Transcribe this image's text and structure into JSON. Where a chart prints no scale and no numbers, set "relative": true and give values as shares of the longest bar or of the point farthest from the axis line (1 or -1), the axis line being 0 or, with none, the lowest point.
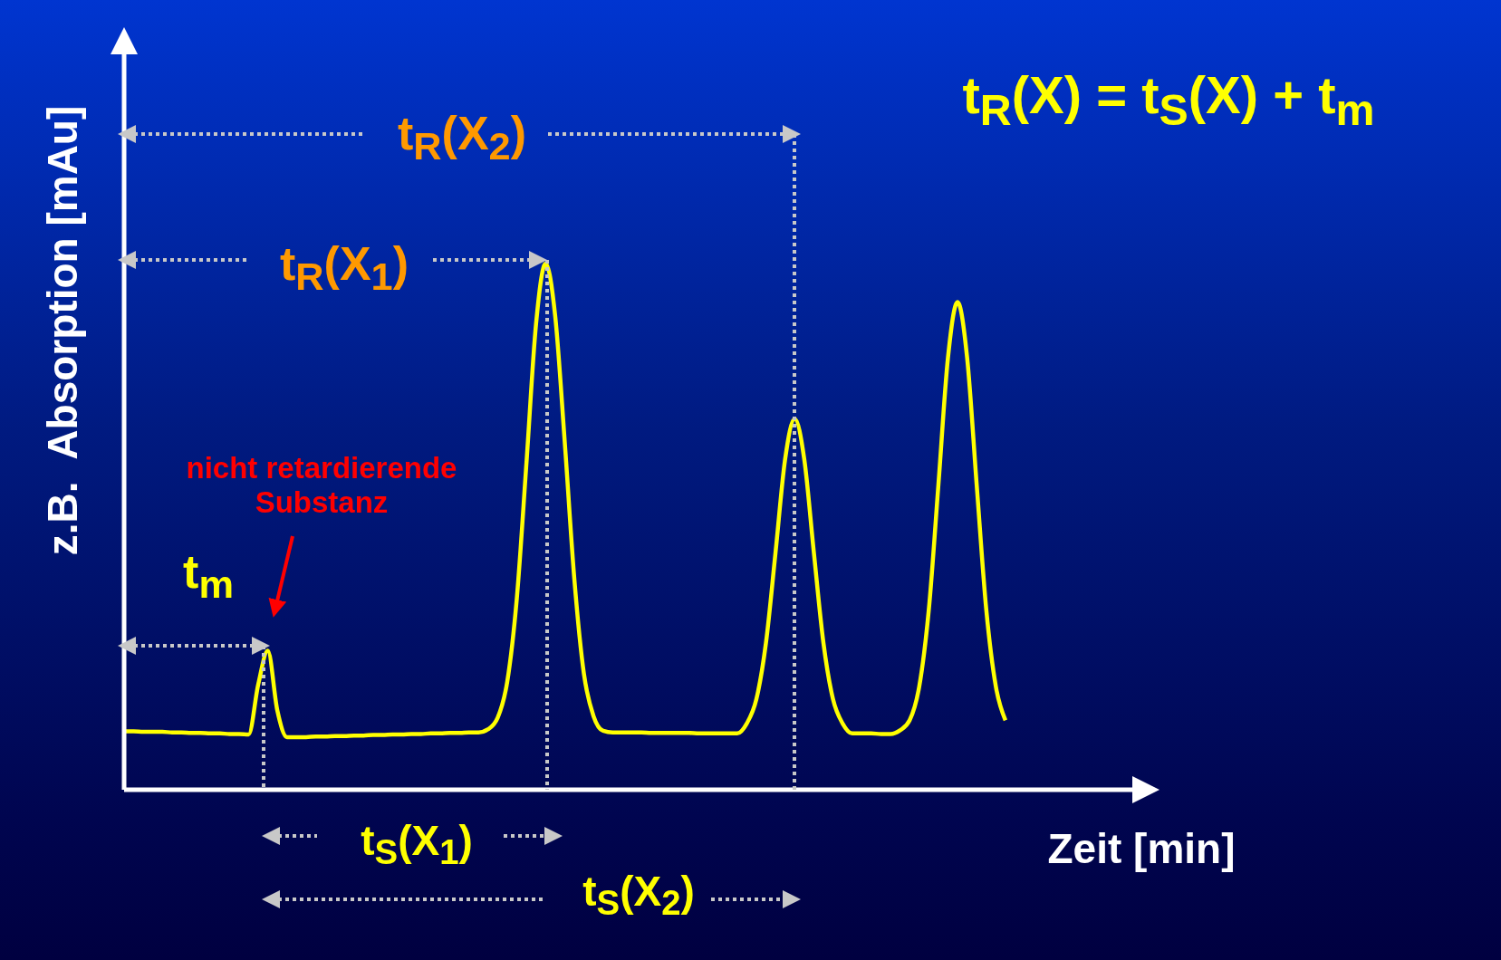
{
  "chart_data": {
    "type": "line",
    "relative": true,
    "xlabel": "Zeit [min]",
    "ylabel": "z.B.  Absorption [mAu]",
    "categories": [
      null,
      null,
      null,
      null,
      null,
      null,
      null,
      null,
      null,
      null,
      null,
      null,
      null,
      null,
      null,
      null,
      null,
      null,
      null,
      null,
      null,
      null,
      null,
      null,
      null,
      null,
      null,
      null,
      null,
      null,
      null,
      null,
      null,
      null,
      null,
      null,
      null,
      null,
      null,
      null,
      null,
      null,
      null,
      null,
      null,
      null,
      null,
      null,
      null,
      null,
      null,
      null,
      null,
      null,
      null,
      null,
      null,
      null,
      null,
      null,
      null,
      null,
      null,
      null,
      null,
      null,
      null,
      null,
      null,
      null,
      null,
      null,
      null,
      null,
      null,
      null,
      null,
      null,
      null,
      null,
      null,
      null,
      null,
      null,
      null,
      null,
      null,
      null,
      null,
      null,
      null,
      null,
      null,
      null,
      null,
      null,
      null,
      null,
      null,
      null,
      null,
      null,
      null,
      null,
      null,
      null,
      null
    ],
    "series": [
      {
        "color": "#ffff00",
        "values": [
          0.111,
          0.111,
          0.11,
          0.11,
          0.11,
          0.109,
          0.109,
          0.108,
          0.108,
          0.107,
          0.107,
          0.106,
          0.106,
          0.105,
          0.2,
          0.264,
          0.15,
          0.1,
          0.1,
          0.1,
          0.101,
          0.101,
          0.102,
          0.102,
          0.103,
          0.103,
          0.104,
          0.104,
          0.105,
          0.105,
          0.106,
          0.106,
          0.107,
          0.107,
          0.108,
          0.108,
          0.109,
          0.109,
          0.115,
          0.137,
          0.206,
          0.365,
          0.621,
          0.885,
          1,
          0.9,
          0.66,
          0.4,
          0.22,
          0.14,
          0.112,
          0.109,
          0.109,
          0.109,
          0.109,
          0.108,
          0.108,
          0.108,
          0.108,
          0.108,
          0.107,
          0.107,
          0.107,
          0.107,
          0.107,
          0.126,
          0.172,
          0.279,
          0.451,
          0.628,
          0.705,
          0.628,
          0.451,
          0.279,
          0.172,
          0.126,
          0.107,
          0.107,
          0.107,
          0.106,
          0.106,
          0.113,
          0.132,
          0.196,
          0.342,
          0.579,
          0.821,
          0.927,
          0.821,
          0.579,
          0.342,
          0.196,
          0.132,
          null,
          null,
          null,
          null,
          null,
          null,
          null,
          null,
          null,
          null,
          null,
          null,
          null,
          null
        ]
      }
    ],
    "annotations": [
      "t$_{R}$(X$_{2}$)",
      "t$_{R}$(X$_{1}$)",
      "t$_{m}$",
      "nicht retardierende Substanz",
      "t$_{S}$(X$_{1}$)",
      "t$_{S}$(X$_{2}$)",
      "t$_{R}$(X) = t$_{S}$(X) + t$_{m}$"
    ],
    "marker": "none",
    "line_style": "solid"
  }
}
